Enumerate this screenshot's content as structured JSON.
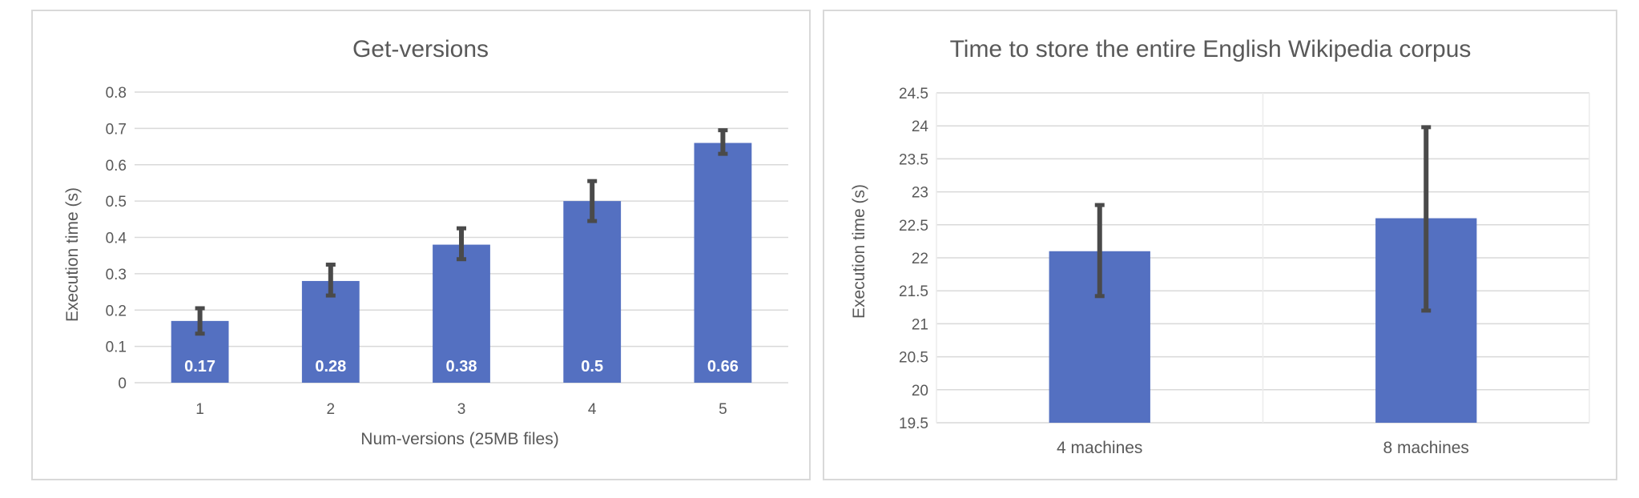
{
  "chart_data": [
    {
      "type": "bar",
      "title": "Get-versions",
      "xlabel": "Num-versions (25MB files)",
      "ylabel": "Execution time (s)",
      "categories": [
        "1",
        "2",
        "3",
        "4",
        "5"
      ],
      "values": [
        0.17,
        0.28,
        0.38,
        0.5,
        0.66
      ],
      "data_labels": [
        "0.17",
        "0.28",
        "0.38",
        "0.5",
        "0.66"
      ],
      "error_low": [
        0.135,
        0.24,
        0.34,
        0.445,
        0.63
      ],
      "error_high": [
        0.205,
        0.325,
        0.425,
        0.555,
        0.695
      ],
      "ylim": [
        0,
        0.8
      ],
      "yticks": [
        "0",
        "0.1",
        "0.2",
        "0.3",
        "0.4",
        "0.5",
        "0.6",
        "0.7",
        "0.8"
      ],
      "grid": "horizontal",
      "bar_color": "#5470c1",
      "error_color": "#4a4a4a"
    },
    {
      "type": "bar",
      "title": "Time to store the entire English Wikipedia corpus",
      "xlabel": "",
      "ylabel": "Execution time (s)",
      "categories": [
        "4 machines",
        "8 machines"
      ],
      "values": [
        22.1,
        22.6
      ],
      "error_low": [
        21.42,
        21.2
      ],
      "error_high": [
        22.8,
        23.98
      ],
      "ylim": [
        19.5,
        24.5
      ],
      "yticks": [
        "19.5",
        "20",
        "20.5",
        "21",
        "21.5",
        "22",
        "22.5",
        "23",
        "23.5",
        "24",
        "24.5"
      ],
      "grid": "both",
      "bar_color": "#5470c1",
      "error_color": "#4a4a4a"
    }
  ]
}
